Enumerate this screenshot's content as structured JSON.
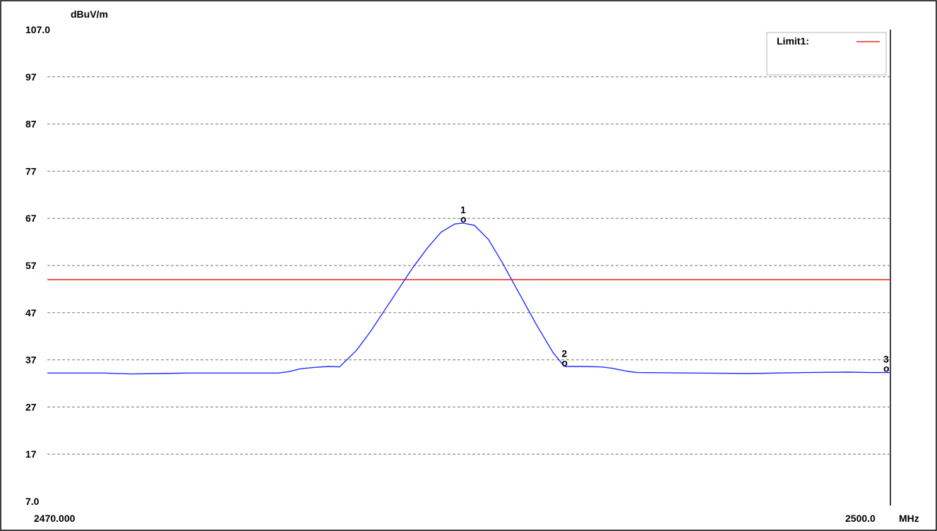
{
  "chart_data": {
    "type": "line",
    "ylabel": "dBuV/m",
    "xunit": "MHz",
    "xlim": [
      2470.0,
      2500.0
    ],
    "ylim": [
      7.0,
      107.0
    ],
    "x_tick_labels": [
      "2470.000",
      "2500.0"
    ],
    "y_tick_labels": [
      "107.0",
      "97",
      "87",
      "77",
      "67",
      "57",
      "47",
      "37",
      "27",
      "17",
      "7.0"
    ],
    "y_ticks": [
      107,
      97,
      87,
      77,
      67,
      57,
      47,
      37,
      27,
      17,
      7
    ],
    "grid": "horizontal-dashed",
    "legend": {
      "position": "top-right",
      "entries": [
        {
          "name": "Limit1:",
          "color": "#e8302a"
        }
      ]
    },
    "limit_line": {
      "name": "Limit1",
      "value": 54.0,
      "color": "#e8302a"
    },
    "series": [
      {
        "color": "#1f2fff",
        "points": [
          [
            2470.0,
            34.2
          ],
          [
            2472.0,
            34.2
          ],
          [
            2473.0,
            34.0
          ],
          [
            2474.0,
            34.1
          ],
          [
            2475.0,
            34.2
          ],
          [
            2477.0,
            34.2
          ],
          [
            2478.2,
            34.2
          ],
          [
            2478.6,
            34.5
          ],
          [
            2479.0,
            35.1
          ],
          [
            2479.5,
            35.4
          ],
          [
            2480.0,
            35.6
          ],
          [
            2480.4,
            35.5
          ],
          [
            2481.0,
            39.0
          ],
          [
            2481.5,
            43.0
          ],
          [
            2482.0,
            47.5
          ],
          [
            2482.5,
            52.0
          ],
          [
            2483.0,
            56.5
          ],
          [
            2483.5,
            60.5
          ],
          [
            2484.0,
            64.0
          ],
          [
            2484.5,
            65.8
          ],
          [
            2484.8,
            66.0
          ],
          [
            2485.2,
            65.5
          ],
          [
            2485.7,
            62.5
          ],
          [
            2486.2,
            57.5
          ],
          [
            2486.8,
            51.0
          ],
          [
            2487.4,
            44.5
          ],
          [
            2488.0,
            38.5
          ],
          [
            2488.4,
            35.6
          ],
          [
            2489.0,
            35.6
          ],
          [
            2489.7,
            35.5
          ],
          [
            2490.1,
            35.2
          ],
          [
            2490.6,
            34.6
          ],
          [
            2491.0,
            34.3
          ],
          [
            2493.0,
            34.2
          ],
          [
            2495.0,
            34.1
          ],
          [
            2497.0,
            34.3
          ],
          [
            2498.5,
            34.4
          ],
          [
            2499.3,
            34.3
          ],
          [
            2500.0,
            34.3
          ]
        ]
      }
    ],
    "markers": [
      {
        "label": "1",
        "symbol": "o",
        "x": 2484.8,
        "y": 66.0
      },
      {
        "label": "2",
        "symbol": "o",
        "x": 2488.4,
        "y": 35.5
      },
      {
        "label": "3",
        "symbol": "o",
        "x": 2500.0,
        "y": 34.3
      }
    ]
  }
}
